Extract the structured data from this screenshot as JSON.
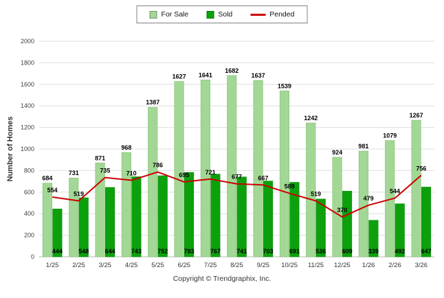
{
  "legend": {
    "items": [
      {
        "label": "For Sale",
        "color": "#a3d795",
        "type": "bar"
      },
      {
        "label": "Sold",
        "color": "#0ca10c",
        "type": "bar"
      },
      {
        "label": "Pended",
        "color": "#cc0000",
        "type": "line"
      }
    ]
  },
  "footer": {
    "copyright": "Copyright © Trendgraphix, Inc."
  },
  "chart_data": {
    "type": "bar",
    "title": "",
    "xlabel": "",
    "ylabel": "Number of Homes",
    "ylim": [
      0,
      2000
    ],
    "ytick_step": 200,
    "grid": true,
    "legend_position": "top",
    "categories": [
      "1/25",
      "2/25",
      "3/25",
      "4/25",
      "5/25",
      "6/25",
      "7/25",
      "8/25",
      "9/25",
      "10/25",
      "11/25",
      "12/25",
      "1/26",
      "2/26",
      "3/26"
    ],
    "series": [
      {
        "name": "For Sale",
        "type": "bar",
        "color": "#a3d795",
        "values": [
          684,
          731,
          871,
          968,
          1387,
          1627,
          1641,
          1682,
          1637,
          1539,
          1242,
          924,
          981,
          1079,
          1267
        ]
      },
      {
        "name": "Sold",
        "type": "bar",
        "color": "#0ca10c",
        "values": [
          444,
          548,
          644,
          743,
          752,
          783,
          767,
          741,
          703,
          691,
          536,
          609,
          339,
          492,
          647
        ]
      },
      {
        "name": "Pended",
        "type": "line",
        "color": "#cc0000",
        "values": [
          554,
          519,
          735,
          710,
          786,
          695,
          721,
          677,
          667,
          589,
          519,
          370,
          479,
          544,
          756
        ]
      }
    ]
  }
}
